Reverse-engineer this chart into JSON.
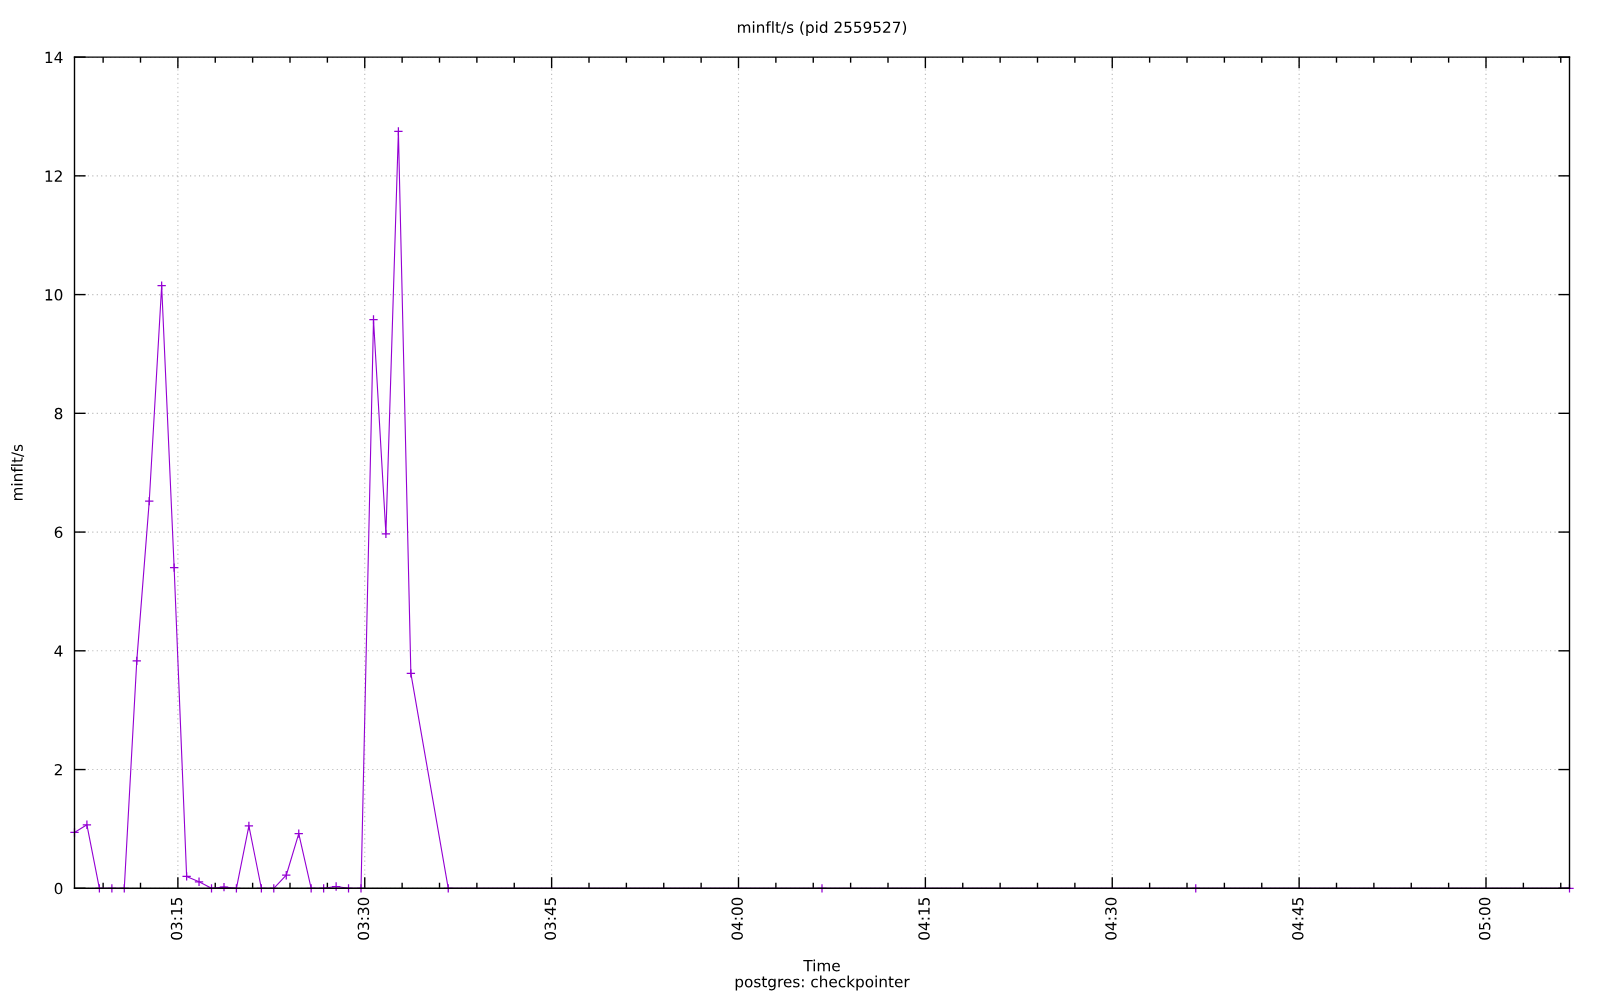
{
  "chart_data": {
    "type": "line",
    "title": "minflt/s (pid 2559527)",
    "xlabel": "Time",
    "ylabel": "minflt/s",
    "annotations": [
      "postgres: checkpointer"
    ],
    "x": [
      3.1117,
      3.1283,
      3.145,
      3.1617,
      3.1783,
      3.195,
      3.2117,
      3.2283,
      3.245,
      3.2617,
      3.2783,
      3.295,
      3.3117,
      3.3283,
      3.345,
      3.3617,
      3.3783,
      3.395,
      3.4117,
      3.4283,
      3.445,
      3.4617,
      3.4783,
      3.495,
      3.5117,
      3.5283,
      3.545,
      3.5617,
      3.6117,
      4.1117,
      4.6117,
      5.1117
    ],
    "series": [
      {
        "color": "#9400d3",
        "values": [
          0.94,
          1.07,
          0,
          0,
          0,
          3.83,
          6.52,
          10.15,
          5.4,
          0.2,
          0.11,
          0,
          0.02,
          0,
          1.05,
          0,
          0,
          0.22,
          0.92,
          0,
          0,
          0.03,
          0,
          0,
          9.58,
          5.97,
          12.75,
          3.62,
          0,
          0,
          0,
          0
        ]
      }
    ],
    "xlim": [
      3.1117,
      5.1117
    ],
    "xticks": [
      {
        "value": 3.15,
        "label": null
      },
      {
        "value": 3.2,
        "label": null
      },
      {
        "value": 3.25,
        "label": "03:15"
      },
      {
        "value": 3.3,
        "label": null
      },
      {
        "value": 3.35,
        "label": null
      },
      {
        "value": 3.4,
        "label": null
      },
      {
        "value": 3.45,
        "label": null
      },
      {
        "value": 3.5,
        "label": "03:30"
      },
      {
        "value": 3.55,
        "label": null
      },
      {
        "value": 3.6,
        "label": null
      },
      {
        "value": 3.65,
        "label": null
      },
      {
        "value": 3.7,
        "label": null
      },
      {
        "value": 3.75,
        "label": "03:45"
      },
      {
        "value": 3.8,
        "label": null
      },
      {
        "value": 3.85,
        "label": null
      },
      {
        "value": 3.9,
        "label": null
      },
      {
        "value": 3.95,
        "label": null
      },
      {
        "value": 4.0,
        "label": "04:00"
      },
      {
        "value": 4.05,
        "label": null
      },
      {
        "value": 4.1,
        "label": null
      },
      {
        "value": 4.15,
        "label": null
      },
      {
        "value": 4.2,
        "label": null
      },
      {
        "value": 4.25,
        "label": "04:15"
      },
      {
        "value": 4.3,
        "label": null
      },
      {
        "value": 4.35,
        "label": null
      },
      {
        "value": 4.4,
        "label": null
      },
      {
        "value": 4.45,
        "label": null
      },
      {
        "value": 4.5,
        "label": "04:30"
      },
      {
        "value": 4.55,
        "label": null
      },
      {
        "value": 4.6,
        "label": null
      },
      {
        "value": 4.65,
        "label": null
      },
      {
        "value": 4.7,
        "label": null
      },
      {
        "value": 4.75,
        "label": "04:45"
      },
      {
        "value": 4.8,
        "label": null
      },
      {
        "value": 4.85,
        "label": null
      },
      {
        "value": 4.9,
        "label": null
      },
      {
        "value": 4.95,
        "label": null
      },
      {
        "value": 5.0,
        "label": "05:00"
      },
      {
        "value": 5.05,
        "label": null
      },
      {
        "value": 5.1,
        "label": null
      }
    ],
    "ylim": [
      0,
      14
    ],
    "yticks": [
      0,
      2,
      4,
      6,
      8,
      10,
      12,
      14
    ],
    "grid": true,
    "marker": "cross",
    "line_style": "solid"
  }
}
